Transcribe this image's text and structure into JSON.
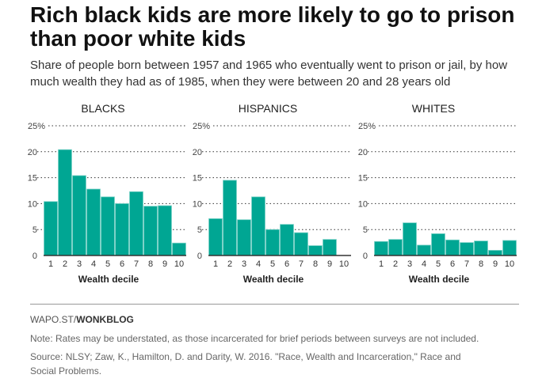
{
  "title": "Rich black kids are more likely to go to prison than poor white kids",
  "subtitle": "Share of people born between 1957 and 1965 who eventually went to prison or jail, by how much wealth they had as of 1985, when they were between 20 and 28 years old",
  "credit_prefix": "WAPO.ST/",
  "credit_brand": "WONKBLOG",
  "note": "Note: Rates may be understated, as those incarcerated for brief periods between surveys are not included.",
  "source": "Source: NLSY; Zaw, K., Hamilton, D. and Darity, W. 2016. \"Race, Wealth and Incarceration,\" Race and Social Problems.",
  "colors": {
    "bar": "#00a693",
    "bar_edge": "#7fd3c9"
  },
  "chart_data": [
    {
      "type": "bar",
      "title": "BLACKS",
      "xlabel": "Wealth decile",
      "ylabel": "",
      "ylim": [
        0,
        25
      ],
      "yticks": [
        "0",
        "5",
        "10",
        "15",
        "20",
        "25%"
      ],
      "grid": true,
      "categories": [
        "1",
        "2",
        "3",
        "4",
        "5",
        "6",
        "7",
        "8",
        "9",
        "10"
      ],
      "values": [
        10.4,
        20.4,
        15.4,
        12.8,
        11.3,
        10.0,
        12.3,
        9.5,
        9.6,
        2.4
      ]
    },
    {
      "type": "bar",
      "title": "HISPANICS",
      "xlabel": "Wealth decile",
      "ylabel": "",
      "ylim": [
        0,
        25
      ],
      "yticks": [
        "0",
        "5",
        "10",
        "15",
        "20",
        "25%"
      ],
      "grid": true,
      "categories": [
        "1",
        "2",
        "3",
        "4",
        "5",
        "6",
        "7",
        "8",
        "9",
        "10"
      ],
      "values": [
        7.1,
        14.5,
        6.9,
        11.3,
        5.0,
        6.0,
        4.4,
        1.9,
        3.1,
        0
      ]
    },
    {
      "type": "bar",
      "title": "WHITES",
      "xlabel": "Wealth decile",
      "ylabel": "",
      "ylim": [
        0,
        25
      ],
      "yticks": [
        "0",
        "5",
        "10",
        "15",
        "20",
        "25%"
      ],
      "grid": true,
      "categories": [
        "1",
        "2",
        "3",
        "4",
        "5",
        "6",
        "7",
        "8",
        "9",
        "10"
      ],
      "values": [
        2.7,
        3.1,
        6.3,
        2.0,
        4.2,
        3.0,
        2.5,
        2.8,
        1.0,
        2.9
      ]
    }
  ]
}
